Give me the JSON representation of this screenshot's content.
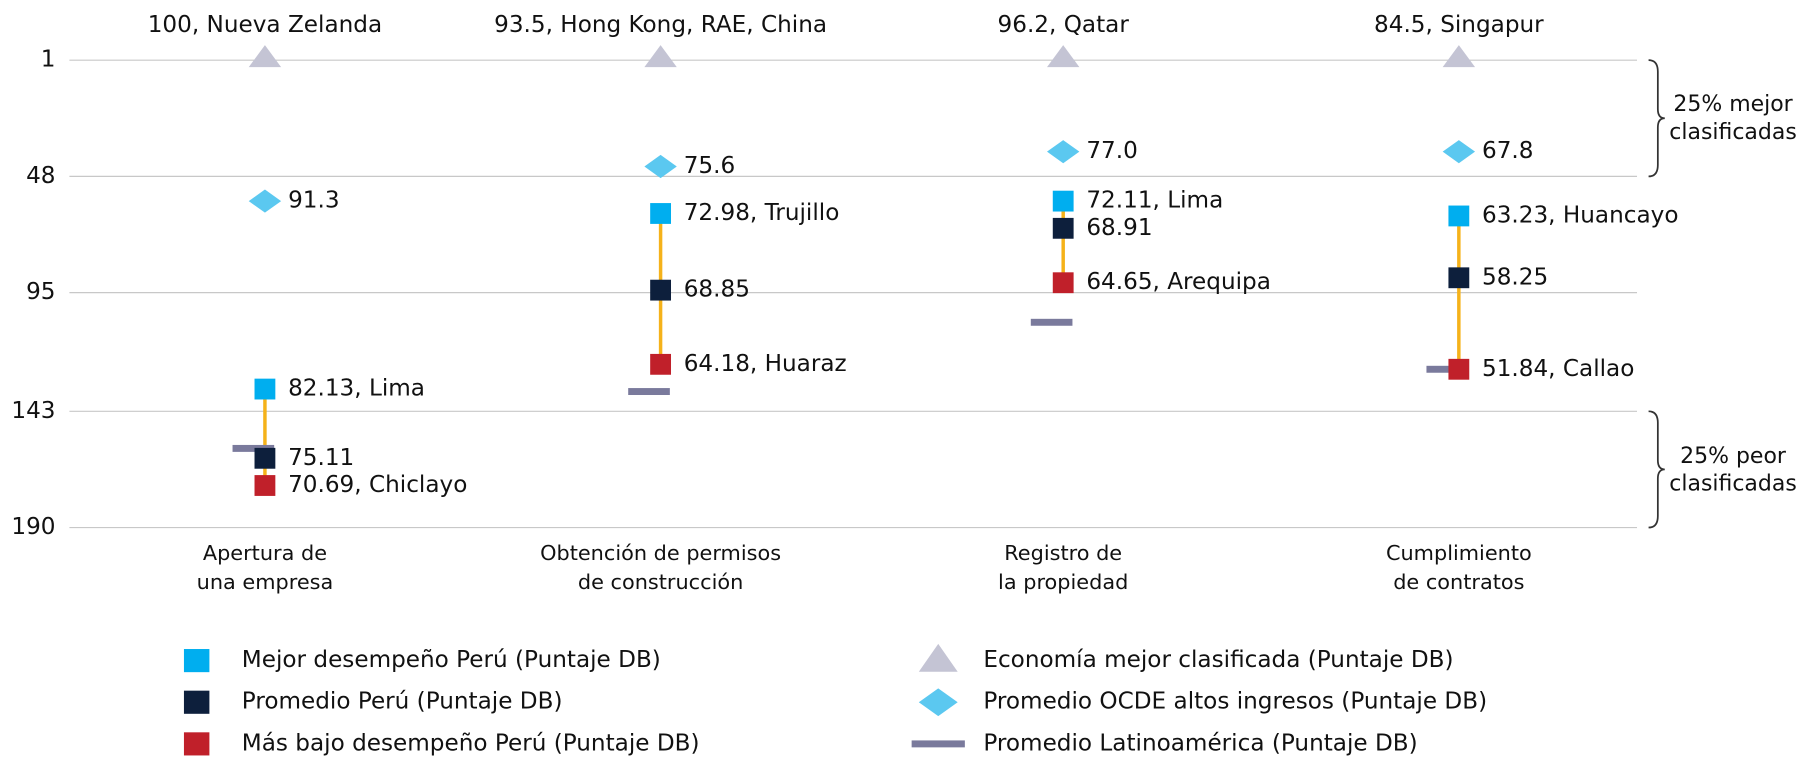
{
  "chart_data": {
    "type": "rank-dot",
    "categories": [
      "Apertura de\nuna empresa",
      "Obtención de permisos\nde construcción",
      "Registro de\nla propiedad",
      "Cumplimiento\nde contratos"
    ],
    "ylim": [
      1,
      190
    ],
    "yticks": [
      1,
      48,
      95,
      143,
      190
    ],
    "inverted": true,
    "grid": true,
    "brackets": [
      {
        "text": "25% mejor\nclasificadas",
        "from": 1,
        "to": 48
      },
      {
        "text": "25% peor\nclasificadas",
        "from": 143,
        "to": 190
      }
    ],
    "connector_color": "#f5b21a",
    "series": [
      {
        "name": "Mejor desempeño Perú (Puntaje DB)",
        "marker": "square",
        "color": "#00aeef",
        "values": [
          134,
          63,
          58,
          64
        ],
        "point_labels": [
          "82.13, Lima",
          "72.98, Trujillo",
          "72.11, Lima",
          "63.23, Huancayo"
        ]
      },
      {
        "name": "Promedio Perú (Puntaje DB)",
        "marker": "square",
        "color": "#0d1f3c",
        "values": [
          162,
          94,
          69,
          89
        ],
        "point_labels": [
          "75.11",
          "68.85",
          "68.91",
          "58.25"
        ]
      },
      {
        "name": "Más bajo desempeño Perú (Puntaje DB)",
        "marker": "square",
        "color": "#c0202a",
        "values": [
          173,
          124,
          91,
          126
        ],
        "point_labels": [
          "70.69, Chiclayo",
          "64.18, Huaraz",
          "64.65, Arequipa",
          "51.84, Callao"
        ]
      },
      {
        "name": "Economía mejor clasificada (Puntaje DB)",
        "marker": "triangle",
        "color": "#c4c4d4",
        "values": [
          1,
          1,
          1,
          1
        ],
        "point_labels": [
          "100, Nueva Zelanda",
          "93.5, Hong Kong, RAE, China",
          "96.2, Qatar",
          "84.5, Singapur"
        ]
      },
      {
        "name": "Promedio OCDE altos ingresos (Puntaje DB)",
        "marker": "diamond",
        "color": "#5bc8f0",
        "values": [
          58,
          44,
          38,
          38
        ],
        "point_labels": [
          "91.3",
          "75.6",
          "77.0",
          "67.8"
        ]
      },
      {
        "name": "Promedio Latinoamérica (Puntaje DB)",
        "marker": "dash",
        "color": "#7a7a9c",
        "values": [
          158,
          135,
          107,
          126
        ]
      }
    ]
  }
}
